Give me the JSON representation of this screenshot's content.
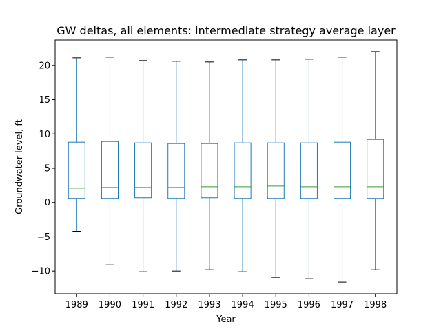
{
  "chart_data": {
    "type": "boxplot",
    "title": "GW deltas, all elements: intermediate strategy average layer",
    "xlabel": "Year",
    "ylabel": "Groundwater level, ft",
    "ylim": [
      -13.3,
      23.7
    ],
    "yticks": [
      -10,
      -5,
      0,
      5,
      10,
      15,
      20
    ],
    "ytick_labels": [
      "−10",
      "−5",
      "0",
      "5",
      "10",
      "15",
      "20"
    ],
    "grid": false,
    "categories": [
      "1989",
      "1990",
      "1991",
      "1992",
      "1993",
      "1994",
      "1995",
      "1996",
      "1997",
      "1998"
    ],
    "boxes": [
      {
        "whislo": -4.2,
        "q1": 0.6,
        "med": 2.1,
        "q3": 8.8,
        "whishi": 21.1
      },
      {
        "whislo": -9.1,
        "q1": 0.6,
        "med": 2.2,
        "q3": 8.9,
        "whishi": 21.2
      },
      {
        "whislo": -10.1,
        "q1": 0.7,
        "med": 2.2,
        "q3": 8.7,
        "whishi": 20.7
      },
      {
        "whislo": -10.0,
        "q1": 0.6,
        "med": 2.2,
        "q3": 8.6,
        "whishi": 20.6
      },
      {
        "whislo": -9.8,
        "q1": 0.7,
        "med": 2.3,
        "q3": 8.6,
        "whishi": 20.5
      },
      {
        "whislo": -10.1,
        "q1": 0.6,
        "med": 2.3,
        "q3": 8.7,
        "whishi": 20.8
      },
      {
        "whislo": -10.9,
        "q1": 0.6,
        "med": 2.4,
        "q3": 8.7,
        "whishi": 20.8
      },
      {
        "whislo": -11.1,
        "q1": 0.6,
        "med": 2.3,
        "q3": 8.7,
        "whishi": 20.9
      },
      {
        "whislo": -11.6,
        "q1": 0.6,
        "med": 2.3,
        "q3": 8.8,
        "whishi": 21.2
      },
      {
        "whislo": -9.8,
        "q1": 0.6,
        "med": 2.3,
        "q3": 9.2,
        "whishi": 22.0
      }
    ],
    "colors": {
      "box": "#1f77b4",
      "median": "#2ca02c",
      "caps": "#000000",
      "axes": "#000000"
    }
  }
}
